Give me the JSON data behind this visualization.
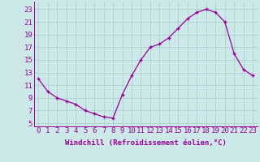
{
  "x": [
    0,
    1,
    2,
    3,
    4,
    5,
    6,
    7,
    8,
    9,
    10,
    11,
    12,
    13,
    14,
    15,
    16,
    17,
    18,
    19,
    20,
    21,
    22,
    23
  ],
  "y": [
    12,
    10,
    9,
    8.5,
    8,
    7,
    6.5,
    6,
    5.8,
    9.5,
    12.5,
    15,
    17,
    17.5,
    18.5,
    20,
    21.5,
    22.5,
    23,
    22.5,
    21,
    16,
    13.5,
    12.5
  ],
  "line_color": "#990099",
  "marker": "+",
  "bg_color": "#cce8e8",
  "grid_color": "#aacece",
  "xlabel": "Windchill (Refroidissement éolien,°C)",
  "ylabel_ticks": [
    5,
    7,
    9,
    11,
    13,
    15,
    17,
    19,
    21,
    23
  ],
  "ylim": [
    4.5,
    24.2
  ],
  "xlim": [
    -0.5,
    23.5
  ],
  "tick_color": "#990099",
  "label_color": "#990099",
  "font_size": 6.5,
  "xlabel_font_size": 6.5,
  "markersize": 3.5,
  "linewidth": 0.9
}
